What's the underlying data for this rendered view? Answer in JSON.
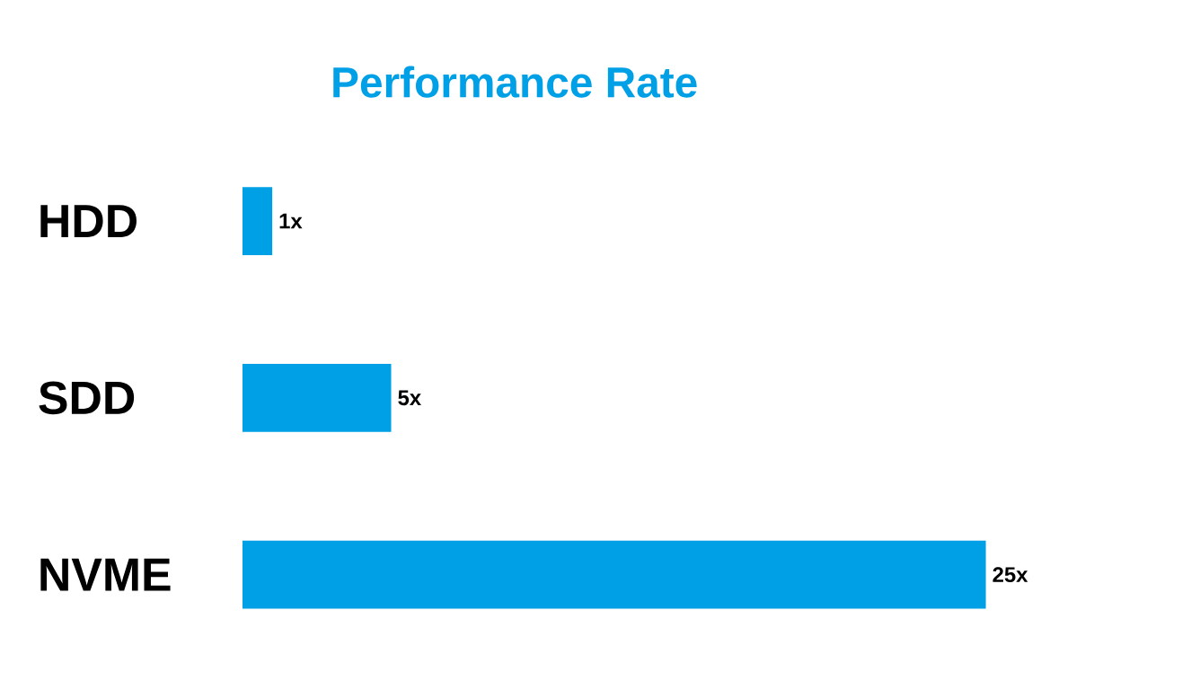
{
  "chart_data": {
    "type": "bar",
    "orientation": "horizontal",
    "title": "Performance Rate",
    "categories": [
      "HDD",
      "SDD",
      "NVME"
    ],
    "values": [
      1,
      5,
      25
    ],
    "value_labels": [
      "1x",
      "5x",
      "25x"
    ],
    "color": "#00a0e6"
  }
}
